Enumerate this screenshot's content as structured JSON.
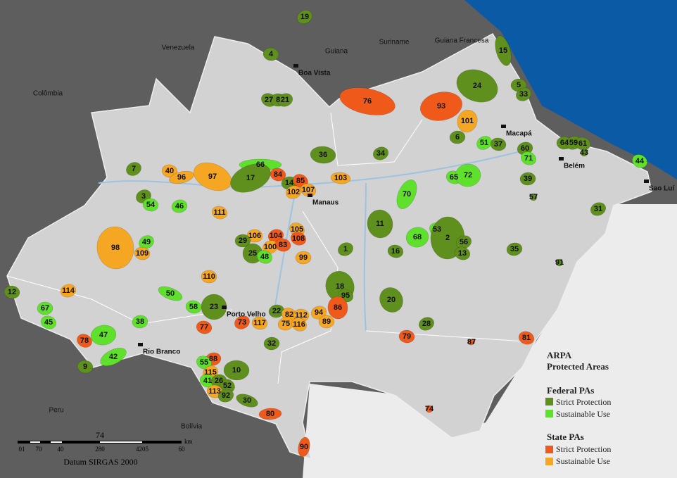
{
  "countries": [
    "Venezuela",
    "Guiana",
    "Suriname",
    "Guiana Francesa",
    "Colômbia",
    "Peru",
    "Bolívia"
  ],
  "cities": [
    "Boa Vista",
    "Macapá",
    "Belém",
    "Manaus",
    "Sao Luí",
    "Porto Velho",
    "Rio Branco"
  ],
  "areas": [
    "19",
    "4",
    "15",
    "24",
    "5",
    "33",
    "76",
    "93",
    "27",
    "8",
    "21",
    "101",
    "6",
    "51",
    "37",
    "60",
    "71",
    "64",
    "59",
    "61",
    "43",
    "44",
    "36",
    "34",
    "65",
    "72",
    "7",
    "40",
    "96",
    "97",
    "66",
    "17",
    "84",
    "14",
    "85",
    "103",
    "102",
    "107",
    "39",
    "3",
    "54",
    "46",
    "70",
    "57",
    "31",
    "111",
    "11",
    "105",
    "106",
    "104",
    "108",
    "29",
    "100",
    "83",
    "68",
    "53",
    "2",
    "56",
    "13",
    "98",
    "49",
    "109",
    "25",
    "48",
    "99",
    "1",
    "16",
    "35",
    "91",
    "110",
    "18",
    "95",
    "86",
    "20",
    "12",
    "114",
    "50",
    "67",
    "23",
    "58",
    "22",
    "82",
    "112",
    "94",
    "45",
    "38",
    "73",
    "117",
    "75",
    "116",
    "89",
    "28",
    "77",
    "47",
    "78",
    "79",
    "87",
    "81",
    "32",
    "42",
    "9",
    "88",
    "55",
    "10",
    "115",
    "41",
    "26",
    "52",
    "113",
    "92",
    "30",
    "80",
    "74",
    "90"
  ],
  "legend": {
    "title": [
      "ARPA",
      "Protected Areas"
    ],
    "federal": {
      "heading": "Federal PAs",
      "items": [
        "Strict Protection",
        "Sustainable Use"
      ]
    },
    "state": {
      "heading": "State PAs",
      "items": [
        "Strict Protection",
        "Sustainable Use"
      ]
    }
  },
  "scale": {
    "number": "74",
    "ticks": [
      "01",
      "70",
      "40",
      "280",
      "4205",
      "60"
    ],
    "unit": "km",
    "datum": "Datum SIRGAS 2000"
  }
}
